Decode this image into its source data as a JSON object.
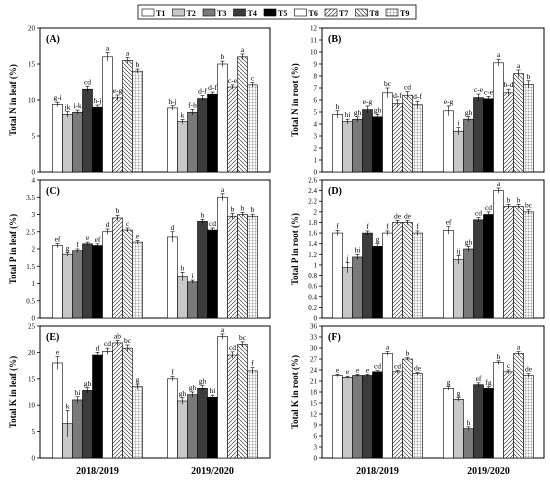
{
  "legend": {
    "items": [
      {
        "label": "T1",
        "pattern": "white"
      },
      {
        "label": "T2",
        "pattern": "lightgray"
      },
      {
        "label": "T3",
        "pattern": "gray"
      },
      {
        "label": "T4",
        "pattern": "darkgray"
      },
      {
        "label": "T5",
        "pattern": "black"
      },
      {
        "label": "T6",
        "pattern": "white"
      },
      {
        "label": "T7",
        "pattern": "hatch"
      },
      {
        "label": "T8",
        "pattern": "hatch2"
      },
      {
        "label": "T9",
        "pattern": "grid"
      }
    ]
  },
  "chart_data": [
    {
      "type": "bar",
      "panel": "(A)",
      "ylabel": "Total N in leaf (%)",
      "ylim": [
        0,
        20
      ],
      "yticks": [
        0,
        5,
        10,
        15,
        20
      ],
      "categories": [
        "2018/2019",
        "2019/2020"
      ],
      "series_values": [
        [
          9.4,
          8.0,
          8.3,
          11.5,
          9.0,
          16.0,
          10.3,
          15.5,
          14.0
        ],
        [
          8.9,
          7.0,
          8.3,
          10.2,
          10.8,
          15.0,
          11.8,
          16.0,
          12.1
        ]
      ],
      "errors": [
        [
          0.3,
          0.4,
          0.3,
          0.4,
          0.3,
          0.6,
          0.4,
          0.4,
          0.3
        ],
        [
          0.3,
          0.3,
          0.4,
          0.4,
          0.3,
          0.4,
          0.3,
          0.4,
          0.3
        ]
      ],
      "letters": [
        [
          "g-i",
          "jk",
          "i-k",
          "cd",
          "h-j",
          "a",
          "e-g",
          "a",
          "b"
        ],
        [
          "h-j",
          "k",
          "f-h",
          "d-f",
          "d-f",
          "b",
          "c-e",
          "a",
          "c"
        ]
      ],
      "show_xlabels": false
    },
    {
      "type": "bar",
      "panel": "(B)",
      "ylabel": "Total N in root (%)",
      "ylim": [
        0,
        12
      ],
      "yticks": [
        0,
        1,
        2,
        3,
        4,
        5,
        6,
        7,
        8,
        9,
        10,
        11,
        12
      ],
      "categories": [
        "2018/2019",
        "2019/2020"
      ],
      "series_values": [
        [
          4.8,
          4.2,
          4.4,
          5.2,
          4.6,
          6.6,
          5.7,
          6.4,
          5.6
        ],
        [
          5.1,
          3.4,
          4.4,
          6.2,
          6.1,
          9.1,
          6.6,
          8.2,
          7.3
        ]
      ],
      "errors": [
        [
          0.3,
          0.2,
          0.2,
          0.3,
          0.2,
          0.4,
          0.3,
          0.3,
          0.3
        ],
        [
          0.4,
          0.3,
          0.2,
          0.3,
          0.2,
          0.3,
          0.3,
          0.3,
          0.3
        ]
      ],
      "letters": [
        [
          "h",
          "hi",
          "gh",
          "e-g",
          "gh",
          "bc",
          "d-f",
          "cd",
          "d-f"
        ],
        [
          "e-g",
          "i",
          "gh",
          "c-e",
          "c-e",
          "a",
          "b-d",
          "a",
          "b"
        ]
      ],
      "show_xlabels": false
    },
    {
      "type": "bar",
      "panel": "(C)",
      "ylabel": "Total P in leaf (%)",
      "ylim": [
        0,
        4
      ],
      "yticks": [
        0,
        0.5,
        1,
        1.5,
        2,
        2.5,
        3,
        3.5,
        4
      ],
      "categories": [
        "2018/2019",
        "2019/2020"
      ],
      "series_values": [
        [
          2.1,
          1.85,
          1.95,
          2.15,
          2.1,
          2.5,
          2.9,
          2.55,
          2.2
        ],
        [
          2.35,
          1.2,
          1.05,
          2.8,
          2.55,
          3.5,
          2.95,
          3.0,
          2.95
        ]
      ],
      "errors": [
        [
          0.06,
          0.05,
          0.05,
          0.05,
          0.05,
          0.08,
          0.08,
          0.06,
          0.05
        ],
        [
          0.15,
          0.12,
          0.05,
          0.06,
          0.06,
          0.1,
          0.08,
          0.06,
          0.06
        ]
      ],
      "letters": [
        [
          "ef",
          "g",
          "f",
          "e",
          "ef",
          "d",
          "b",
          "c",
          "e"
        ],
        [
          "d",
          "h",
          "i",
          "b",
          "cd",
          "a",
          "b",
          "b",
          "b"
        ]
      ],
      "show_xlabels": false
    },
    {
      "type": "bar",
      "panel": "(D)",
      "ylabel": "Total P in root (%)",
      "ylim": [
        0,
        2.6
      ],
      "yticks": [
        0,
        0.2,
        0.4,
        0.6,
        0.8,
        1,
        1.2,
        1.4,
        1.6,
        1.8,
        2,
        2.2,
        2.4,
        2.6
      ],
      "categories": [
        "2018/2019",
        "2019/2020"
      ],
      "series_values": [
        [
          1.6,
          0.95,
          1.15,
          1.6,
          1.35,
          1.6,
          1.8,
          1.8,
          1.6
        ],
        [
          1.65,
          1.1,
          1.3,
          1.85,
          1.95,
          2.4,
          2.1,
          2.1,
          2.0
        ]
      ],
      "errors": [
        [
          0.05,
          0.1,
          0.05,
          0.04,
          0.05,
          0.04,
          0.04,
          0.04,
          0.04
        ],
        [
          0.07,
          0.08,
          0.05,
          0.04,
          0.05,
          0.05,
          0.04,
          0.04,
          0.04
        ]
      ],
      "letters": [
        [
          "f",
          "j",
          "hi",
          "f",
          "g",
          "f",
          "de",
          "de",
          "f"
        ],
        [
          "ef",
          "ij",
          "gh",
          "cd",
          "cd",
          "a",
          "b",
          "b",
          "bc"
        ]
      ],
      "show_xlabels": false
    },
    {
      "type": "bar",
      "panel": "(E)",
      "ylabel": "Total K in leaf (%)",
      "ylim": [
        0,
        25
      ],
      "yticks": [
        0,
        5,
        10,
        15,
        20,
        25
      ],
      "categories": [
        "2018/2019",
        "2019/2020"
      ],
      "series_values": [
        [
          18.0,
          6.5,
          11.0,
          12.8,
          19.5,
          20.2,
          21.8,
          20.8,
          13.5
        ],
        [
          15.0,
          10.8,
          12.0,
          13.2,
          11.5,
          23.0,
          19.5,
          21.5,
          16.5
        ]
      ],
      "errors": [
        [
          1.2,
          2.5,
          0.6,
          0.5,
          0.5,
          0.6,
          0.5,
          0.6,
          0.5
        ],
        [
          0.4,
          0.6,
          0.5,
          0.5,
          0.4,
          0.5,
          0.6,
          0.5,
          0.6
        ]
      ],
      "letters": [
        [
          "e",
          "k",
          "hi",
          "gh",
          "d",
          "cd",
          "ab",
          "bc",
          "g"
        ],
        [
          "f",
          "gh",
          "gh",
          "gh",
          "hi",
          "a",
          "cd",
          "bc",
          "f"
        ]
      ],
      "show_xlabels": true
    },
    {
      "type": "bar",
      "panel": "(F)",
      "ylabel": "Total K in root (%)",
      "ylim": [
        0,
        36
      ],
      "yticks": [
        0,
        3,
        6,
        9,
        12,
        15,
        18,
        21,
        24,
        27,
        30,
        33,
        36
      ],
      "categories": [
        "2018/2019",
        "2019/2020"
      ],
      "series_values": [
        [
          22.5,
          22.0,
          22.5,
          22.5,
          23.5,
          28.5,
          23.5,
          27.0,
          23.0
        ],
        [
          19.0,
          16.0,
          8.0,
          20.0,
          19.0,
          26.0,
          23.5,
          28.5,
          22.5
        ]
      ],
      "errors": [
        [
          0.3,
          0.3,
          0.3,
          0.3,
          0.3,
          0.5,
          0.4,
          0.4,
          0.3
        ],
        [
          0.5,
          0.5,
          0.5,
          0.5,
          0.4,
          0.5,
          0.5,
          0.5,
          0.5
        ]
      ],
      "letters": [
        [
          "e",
          "e",
          "e",
          "e",
          "cd",
          "a",
          "cd",
          "b",
          "de"
        ],
        [
          "g",
          "g",
          "h",
          "ef",
          "fg",
          "b",
          "c",
          "a",
          "de"
        ]
      ],
      "show_xlabels": true
    }
  ]
}
